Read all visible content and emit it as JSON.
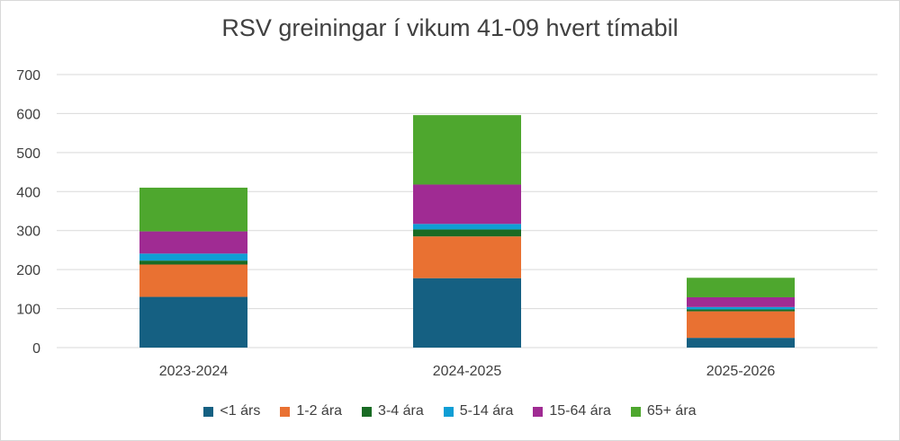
{
  "chart_data": {
    "type": "bar",
    "stacked": true,
    "title": "RSV greiningar í vikum 41-09 hvert tímabil",
    "xlabel": "",
    "ylabel": "",
    "ylim": [
      0,
      700
    ],
    "yticks": [
      0,
      100,
      200,
      300,
      400,
      500,
      600,
      700
    ],
    "grid": true,
    "legend_position": "bottom",
    "categories": [
      "2023-2024",
      "2024-2025",
      "2025-2026"
    ],
    "series": [
      {
        "name": "<1 árs",
        "color": "#156082",
        "values": [
          130,
          178,
          25
        ]
      },
      {
        "name": "1-2 ára",
        "color": "#e97132",
        "values": [
          83,
          107,
          68
        ]
      },
      {
        "name": "3-4 ára",
        "color": "#196b24",
        "values": [
          10,
          18,
          5
        ]
      },
      {
        "name": "5-14 ára",
        "color": "#0f9ed5",
        "values": [
          18,
          14,
          6
        ]
      },
      {
        "name": "15-64 ára",
        "color": "#a02b93",
        "values": [
          57,
          101,
          25
        ]
      },
      {
        "name": "65+ ára",
        "color": "#4ea72e",
        "values": [
          112,
          178,
          50
        ]
      }
    ]
  }
}
